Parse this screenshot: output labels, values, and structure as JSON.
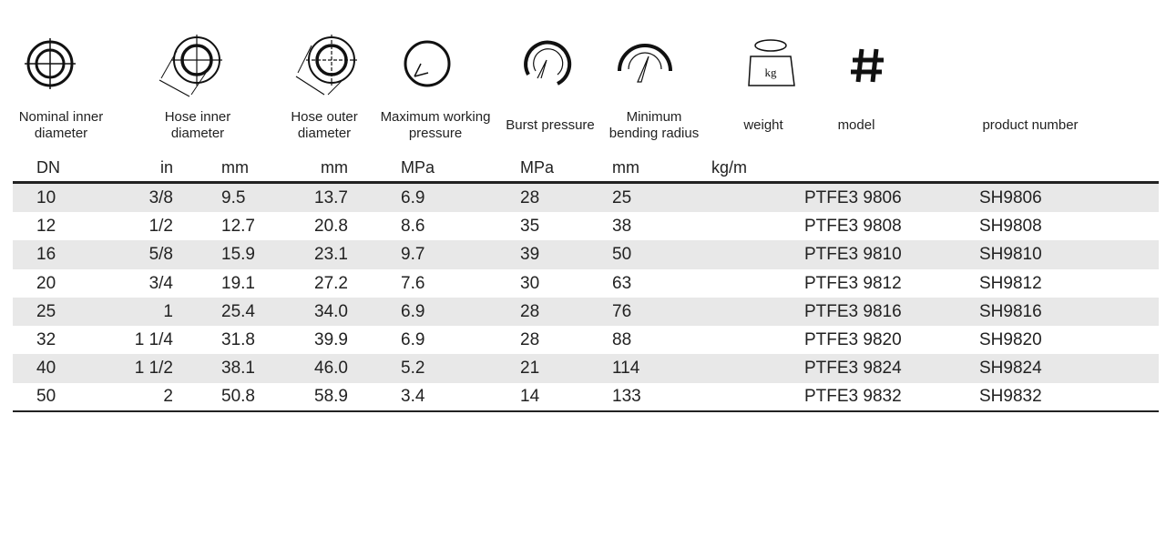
{
  "header": {
    "labels": [
      [
        "Nominal inner",
        "diameter"
      ],
      [
        "Hose inner",
        "diameter"
      ],
      [
        "Hose outer",
        "diameter"
      ],
      [
        "Maximum working",
        "pressure"
      ],
      [
        "Burst pressure"
      ],
      [
        "Minimum",
        "bending radius"
      ],
      [
        "weight"
      ],
      [
        "model"
      ],
      [
        "product number"
      ]
    ],
    "units": [
      "DN",
      "in",
      "mm",
      "mm",
      "MPa",
      "MPa",
      "mm",
      "kg/m"
    ]
  },
  "table": {
    "rows": [
      [
        "10",
        "3/8",
        "9.5",
        "13.7",
        "6.9",
        "28",
        "25",
        "PTFE3 9806",
        "SH9806"
      ],
      [
        "12",
        "1/2",
        "12.7",
        "20.8",
        "8.6",
        "35",
        "38",
        "PTFE3 9808",
        "SH9808"
      ],
      [
        "16",
        "5/8",
        "15.9",
        "23.1",
        "9.7",
        "39",
        "50",
        "PTFE3 9810",
        "SH9810"
      ],
      [
        "20",
        "3/4",
        "19.1",
        "27.2",
        "7.6",
        "30",
        "63",
        "PTFE3 9812",
        "SH9812"
      ],
      [
        "25",
        "1",
        "25.4",
        "34.0",
        "6.9",
        "28",
        "76",
        "PTFE3 9816",
        "SH9816"
      ],
      [
        "32",
        "1 1/4",
        "31.8",
        "39.9",
        "6.9",
        "28",
        "88",
        "PTFE3 9820",
        "SH9820"
      ],
      [
        "40",
        "1 1/2",
        "38.1",
        "46.0",
        "5.2",
        "21",
        "114",
        "PTFE3 9824",
        "SH9824"
      ],
      [
        "50",
        "2",
        "50.8",
        "58.9",
        "3.4",
        "14",
        "133",
        "PTFE3 9832",
        "SH9832"
      ]
    ]
  }
}
